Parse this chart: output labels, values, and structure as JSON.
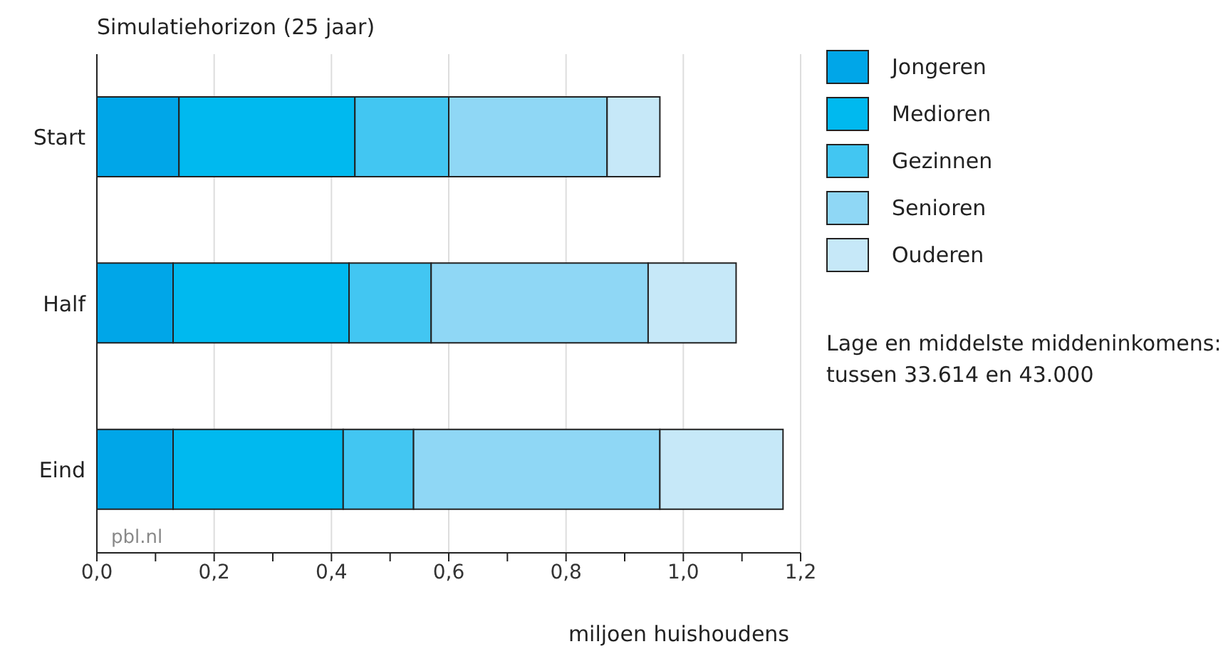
{
  "chart_data": {
    "type": "bar",
    "orientation": "horizontal",
    "stacked": true,
    "title": "Simulatiehorizon (25 jaar)",
    "xlabel": "miljoen huishoudens",
    "categories": [
      "Start",
      "Half",
      "Eind"
    ],
    "series": [
      {
        "name": "Jongeren",
        "color": "#00a6e8",
        "values": [
          0.14,
          0.13,
          0.13
        ]
      },
      {
        "name": "Medioren",
        "color": "#00b9ef",
        "values": [
          0.3,
          0.3,
          0.29
        ]
      },
      {
        "name": "Gezinnen",
        "color": "#42c6f2",
        "values": [
          0.16,
          0.14,
          0.12
        ]
      },
      {
        "name": "Senioren",
        "color": "#8fd7f5",
        "values": [
          0.27,
          0.37,
          0.42
        ]
      },
      {
        "name": "Ouderen",
        "color": "#c6e8f8",
        "values": [
          0.09,
          0.15,
          0.21
        ]
      }
    ],
    "xlim": [
      0,
      1.2
    ],
    "xticks": [
      {
        "value": 0,
        "label": "0,0"
      },
      {
        "value": 0.1,
        "label": null
      },
      {
        "value": 0.2,
        "label": "0,2"
      },
      {
        "value": 0.3,
        "label": null
      },
      {
        "value": 0.4,
        "label": "0,4"
      },
      {
        "value": 0.5,
        "label": null
      },
      {
        "value": 0.6,
        "label": "0,6"
      },
      {
        "value": 0.7,
        "label": null
      },
      {
        "value": 0.8,
        "label": "0,8"
      },
      {
        "value": 0.9,
        "label": null
      },
      {
        "value": 1.0,
        "label": "1,0"
      },
      {
        "value": 1.1,
        "label": null
      },
      {
        "value": 1.2,
        "label": "1,2"
      }
    ],
    "grid": "x",
    "legend": "right",
    "annotations": [
      "Lage en middelste middeninkomens: tussen 33.614 en 43.000",
      "pbl.nl"
    ]
  }
}
